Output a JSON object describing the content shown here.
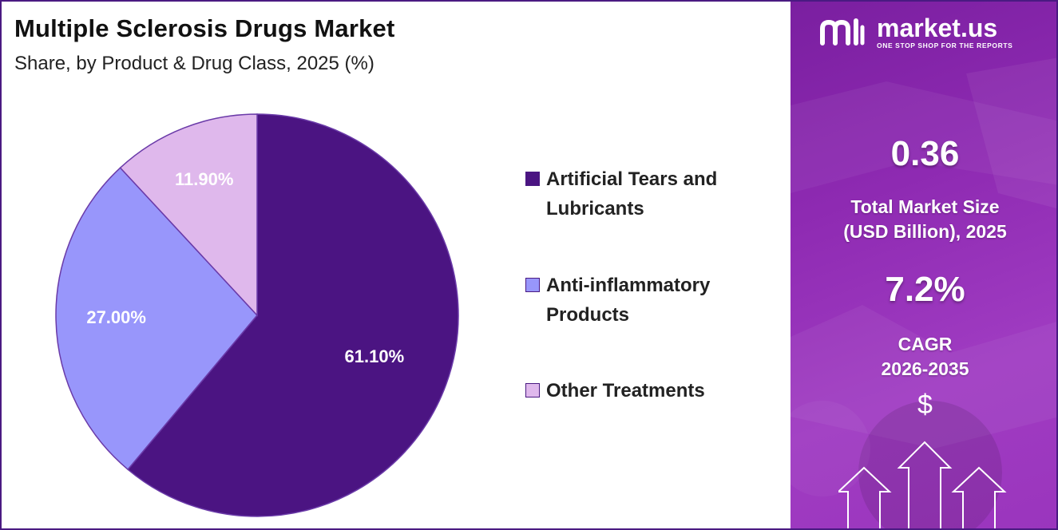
{
  "header": {
    "title": "Multiple Sclerosis Drugs Market",
    "subtitle": "Share, by Product & Drug Class, 2025 (%)"
  },
  "chart_data": {
    "type": "pie",
    "title": "Multiple Sclerosis Drugs Market",
    "subtitle": "Share, by Product & Drug Class, 2025 (%)",
    "categories": [
      "Artificial Tears and Lubricants",
      "Anti-inflammatory Products",
      "Other Treatments"
    ],
    "values": [
      61.1,
      27.0,
      11.9
    ],
    "value_labels": [
      "61.10%",
      "27.00%",
      "11.90%"
    ],
    "colors": [
      "#4b1482",
      "#9896fb",
      "#dfb8ec"
    ],
    "start_angle_deg": 0,
    "direction": "clockwise",
    "legend_position": "right"
  },
  "legend": {
    "items": [
      {
        "line1": "Artificial Tears and",
        "line2": "Lubricants",
        "color": "#4b1482"
      },
      {
        "line1": "Anti-inflammatory",
        "line2": "Products",
        "color": "#9896fb"
      },
      {
        "line1": "Other Treatments",
        "line2": "",
        "color": "#dfb8ec"
      }
    ]
  },
  "brand": {
    "name": "market.us",
    "tagline": "ONE STOP SHOP FOR THE REPORTS",
    "icon": "market-us-logo-icon"
  },
  "stats": {
    "market_size_value": "0.36",
    "market_size_label_1": "Total Market Size",
    "market_size_label_2": "(USD Billion), 2025",
    "cagr_value": "7.2%",
    "cagr_label_1": "CAGR",
    "cagr_label_2": "2026-2035",
    "currency_symbol": "$"
  },
  "theme": {
    "panel_color": "#8e2ab2",
    "border_color": "#4a1a82"
  }
}
